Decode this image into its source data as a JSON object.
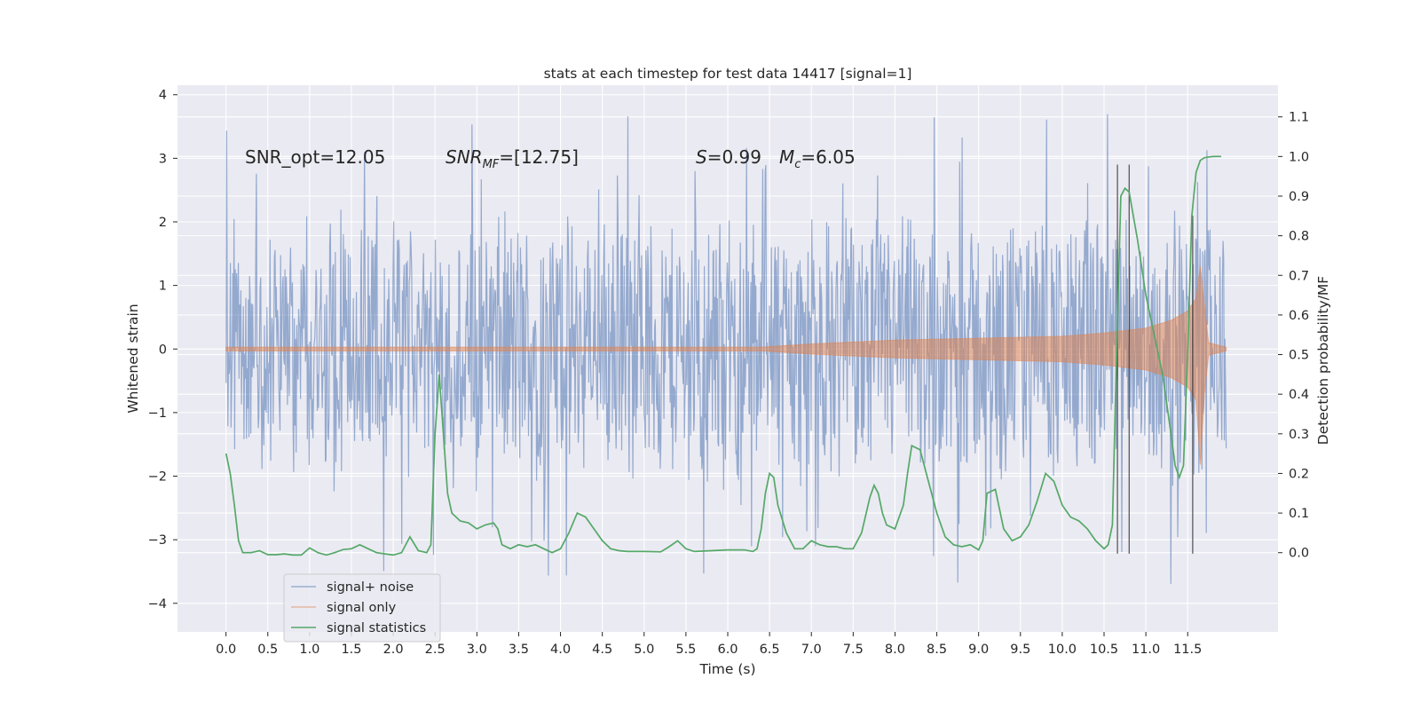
{
  "chart_data": {
    "type": "line",
    "title": "stats at each timestep for test data 14417 [signal=1]",
    "xlabel": "Time (s)",
    "ylabel": "Whitened strain",
    "ylabel_right": "Detection probability/MF",
    "xlim": [
      -0.58,
      12.58
    ],
    "ylim": [
      -4.45,
      4.15
    ],
    "ylim_right": [
      -0.2,
      1.18
    ],
    "x_ticks": [
      "0.0",
      "0.5",
      "1.0",
      "1.5",
      "2.0",
      "2.5",
      "3.0",
      "3.5",
      "4.0",
      "4.5",
      "5.0",
      "5.5",
      "6.0",
      "6.5",
      "7.0",
      "7.5",
      "8.0",
      "8.5",
      "9.0",
      "9.5",
      "10.0",
      "10.5",
      "11.0",
      "11.5"
    ],
    "y_ticks": [
      "−4",
      "−3",
      "−2",
      "−1",
      "0",
      "1",
      "2",
      "3",
      "4"
    ],
    "y_ticks_right": [
      "0.0",
      "0.1",
      "0.2",
      "0.3",
      "0.4",
      "0.5",
      "0.6",
      "0.7",
      "0.8",
      "0.9",
      "1.0",
      "1.1"
    ],
    "grid": true,
    "legend_position": "lower-left",
    "annotations": {
      "snr_opt": "SNR_opt=12.05",
      "snr_mf_main": "SNR",
      "snr_mf_sub": "MF",
      "snr_mf_rest": "=[12.75]",
      "s_main": "S",
      "s_rest": "=0.99",
      "mc_main": "M",
      "mc_sub": "c",
      "mc_rest": "=6.05"
    },
    "series": [
      {
        "name": "signal+ noise",
        "color": "#4c72b0",
        "x_range": [
          0.0,
          11.96
        ],
        "envelope": "noise band roughly ±2.3 with spikes reaching about ±3.7"
      },
      {
        "name": "signal only",
        "color": "#dd8452",
        "envelope_points": [
          [
            0.0,
            0.03
          ],
          [
            6.4,
            0.03
          ],
          [
            7.0,
            0.08
          ],
          [
            8.0,
            0.14
          ],
          [
            9.0,
            0.17
          ],
          [
            10.0,
            0.2
          ],
          [
            10.5,
            0.25
          ],
          [
            11.0,
            0.33
          ],
          [
            11.3,
            0.45
          ],
          [
            11.5,
            0.6
          ],
          [
            11.6,
            0.8
          ],
          [
            11.65,
            1.3
          ],
          [
            11.7,
            0.7
          ],
          [
            11.75,
            0.1
          ],
          [
            11.96,
            0.03
          ]
        ]
      },
      {
        "name": "signal statistics",
        "color": "#55a868",
        "axis": "right",
        "points": [
          [
            0.0,
            0.25
          ],
          [
            0.05,
            0.2
          ],
          [
            0.1,
            0.12
          ],
          [
            0.15,
            0.03
          ],
          [
            0.2,
            0.0
          ],
          [
            0.3,
            0.0
          ],
          [
            0.4,
            0.005
          ],
          [
            0.5,
            -0.005
          ],
          [
            0.6,
            -0.005
          ],
          [
            0.7,
            -0.003
          ],
          [
            0.8,
            -0.006
          ],
          [
            0.9,
            -0.006
          ],
          [
            1.0,
            0.012
          ],
          [
            1.1,
            0.0
          ],
          [
            1.2,
            -0.006
          ],
          [
            1.3,
            0.0
          ],
          [
            1.4,
            0.008
          ],
          [
            1.5,
            0.01
          ],
          [
            1.6,
            0.02
          ],
          [
            1.7,
            0.01
          ],
          [
            1.8,
            0.0
          ],
          [
            1.9,
            -0.003
          ],
          [
            2.0,
            -0.006
          ],
          [
            2.1,
            0.0
          ],
          [
            2.2,
            0.04
          ],
          [
            2.3,
            0.005
          ],
          [
            2.4,
            0.0
          ],
          [
            2.45,
            0.02
          ],
          [
            2.5,
            0.3
          ],
          [
            2.55,
            0.45
          ],
          [
            2.6,
            0.3
          ],
          [
            2.65,
            0.15
          ],
          [
            2.7,
            0.1
          ],
          [
            2.8,
            0.08
          ],
          [
            2.9,
            0.075
          ],
          [
            3.0,
            0.06
          ],
          [
            3.1,
            0.07
          ],
          [
            3.2,
            0.075
          ],
          [
            3.25,
            0.06
          ],
          [
            3.3,
            0.02
          ],
          [
            3.4,
            0.01
          ],
          [
            3.5,
            0.02
          ],
          [
            3.6,
            0.015
          ],
          [
            3.7,
            0.02
          ],
          [
            3.8,
            0.01
          ],
          [
            3.9,
            0.0
          ],
          [
            4.0,
            0.01
          ],
          [
            4.1,
            0.05
          ],
          [
            4.2,
            0.1
          ],
          [
            4.3,
            0.09
          ],
          [
            4.4,
            0.06
          ],
          [
            4.5,
            0.03
          ],
          [
            4.6,
            0.01
          ],
          [
            4.7,
            0.005
          ],
          [
            4.8,
            0.003
          ],
          [
            5.0,
            0.003
          ],
          [
            5.2,
            0.002
          ],
          [
            5.3,
            0.015
          ],
          [
            5.4,
            0.03
          ],
          [
            5.5,
            0.01
          ],
          [
            5.6,
            0.003
          ],
          [
            5.8,
            0.005
          ],
          [
            6.0,
            0.007
          ],
          [
            6.2,
            0.007
          ],
          [
            6.3,
            0.003
          ],
          [
            6.35,
            0.01
          ],
          [
            6.4,
            0.06
          ],
          [
            6.45,
            0.15
          ],
          [
            6.5,
            0.2
          ],
          [
            6.55,
            0.19
          ],
          [
            6.6,
            0.12
          ],
          [
            6.7,
            0.05
          ],
          [
            6.8,
            0.01
          ],
          [
            6.9,
            0.01
          ],
          [
            7.0,
            0.03
          ],
          [
            7.1,
            0.02
          ],
          [
            7.2,
            0.015
          ],
          [
            7.3,
            0.015
          ],
          [
            7.4,
            0.01
          ],
          [
            7.5,
            0.01
          ],
          [
            7.6,
            0.05
          ],
          [
            7.7,
            0.14
          ],
          [
            7.75,
            0.17
          ],
          [
            7.8,
            0.15
          ],
          [
            7.85,
            0.1
          ],
          [
            7.9,
            0.07
          ],
          [
            8.0,
            0.06
          ],
          [
            8.1,
            0.12
          ],
          [
            8.15,
            0.2
          ],
          [
            8.2,
            0.27
          ],
          [
            8.3,
            0.26
          ],
          [
            8.4,
            0.18
          ],
          [
            8.5,
            0.1
          ],
          [
            8.6,
            0.04
          ],
          [
            8.7,
            0.02
          ],
          [
            8.8,
            0.015
          ],
          [
            8.9,
            0.02
          ],
          [
            9.0,
            0.007
          ],
          [
            9.05,
            0.03
          ],
          [
            9.1,
            0.15
          ],
          [
            9.2,
            0.16
          ],
          [
            9.3,
            0.06
          ],
          [
            9.4,
            0.03
          ],
          [
            9.5,
            0.04
          ],
          [
            9.6,
            0.07
          ],
          [
            9.7,
            0.13
          ],
          [
            9.8,
            0.2
          ],
          [
            9.9,
            0.18
          ],
          [
            10.0,
            0.12
          ],
          [
            10.1,
            0.09
          ],
          [
            10.2,
            0.08
          ],
          [
            10.3,
            0.06
          ],
          [
            10.4,
            0.03
          ],
          [
            10.5,
            0.01
          ],
          [
            10.55,
            0.02
          ],
          [
            10.6,
            0.07
          ],
          [
            10.65,
            0.5
          ],
          [
            10.7,
            0.9
          ],
          [
            10.75,
            0.92
          ],
          [
            10.8,
            0.91
          ],
          [
            10.9,
            0.79
          ],
          [
            11.0,
            0.65
          ],
          [
            11.1,
            0.55
          ],
          [
            11.2,
            0.45
          ],
          [
            11.3,
            0.3
          ],
          [
            11.35,
            0.22
          ],
          [
            11.4,
            0.19
          ],
          [
            11.45,
            0.22
          ],
          [
            11.5,
            0.5
          ],
          [
            11.55,
            0.85
          ],
          [
            11.6,
            0.96
          ],
          [
            11.65,
            0.99
          ],
          [
            11.7,
            0.997
          ],
          [
            11.8,
            1.0
          ],
          [
            11.9,
            1.0
          ]
        ]
      }
    ],
    "vertical_markers": [
      {
        "x": 10.66,
        "y_range": [
          -3.22,
          2.9
        ]
      },
      {
        "x": 10.8,
        "y_range": [
          -3.22,
          2.9
        ]
      },
      {
        "x": 11.56,
        "y_range": [
          -3.22,
          2.1
        ]
      }
    ]
  }
}
